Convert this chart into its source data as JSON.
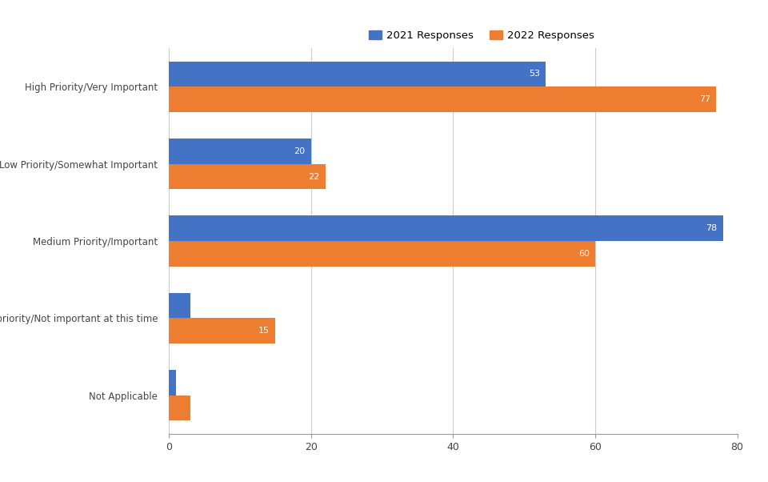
{
  "categories": [
    "High Priority/Very Important",
    "Low Priority/Somewhat Important",
    "Medium Priority/Important",
    "Not a priority/Not important at this time",
    "Not Applicable"
  ],
  "values_2021": [
    53,
    20,
    78,
    3,
    1
  ],
  "values_2022": [
    77,
    22,
    60,
    15,
    3
  ],
  "color_2021": "#4472C4",
  "color_2022": "#ED7D31",
  "legend_2021": "2021 Responses",
  "legend_2022": "2022 Responses",
  "xlim": [
    0,
    80
  ],
  "xticks": [
    0,
    20,
    40,
    60,
    80
  ],
  "bar_height": 0.33,
  "background_color": "#FFFFFF",
  "grid_color": "#CCCCCC",
  "label_fontsize": 8.5,
  "value_fontsize": 8.0,
  "tick_fontsize": 9
}
